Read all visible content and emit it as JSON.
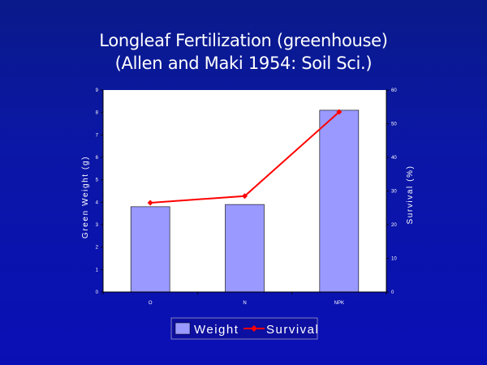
{
  "chart_data": {
    "type": "bar",
    "title": [
      "Longleaf Fertilization (greenhouse)",
      "(Allen and Maki 1954: Soil Sci.)"
    ],
    "categories": [
      "O",
      "N",
      "NPK"
    ],
    "ylabel": "Green Weight (g)",
    "y2label": "Survival (%)",
    "ylim": [
      0,
      9
    ],
    "y2lim": [
      0,
      60
    ],
    "yticks": [
      "0",
      "1",
      "2",
      "3",
      "4",
      "5",
      "6",
      "7",
      "8",
      "9"
    ],
    "y2ticks": [
      "0",
      "10",
      "20",
      "30",
      "40",
      "50",
      "60"
    ],
    "series": [
      {
        "name": "Weight",
        "type": "bar",
        "axis": "left",
        "values": [
          3.8,
          3.9,
          8.1
        ],
        "color": "#9999ff"
      },
      {
        "name": "Survival",
        "type": "line",
        "axis": "right",
        "values": [
          26.5,
          28.5,
          53.5
        ],
        "color": "#ff0000"
      }
    ],
    "legend": "bottom",
    "grid": false
  }
}
